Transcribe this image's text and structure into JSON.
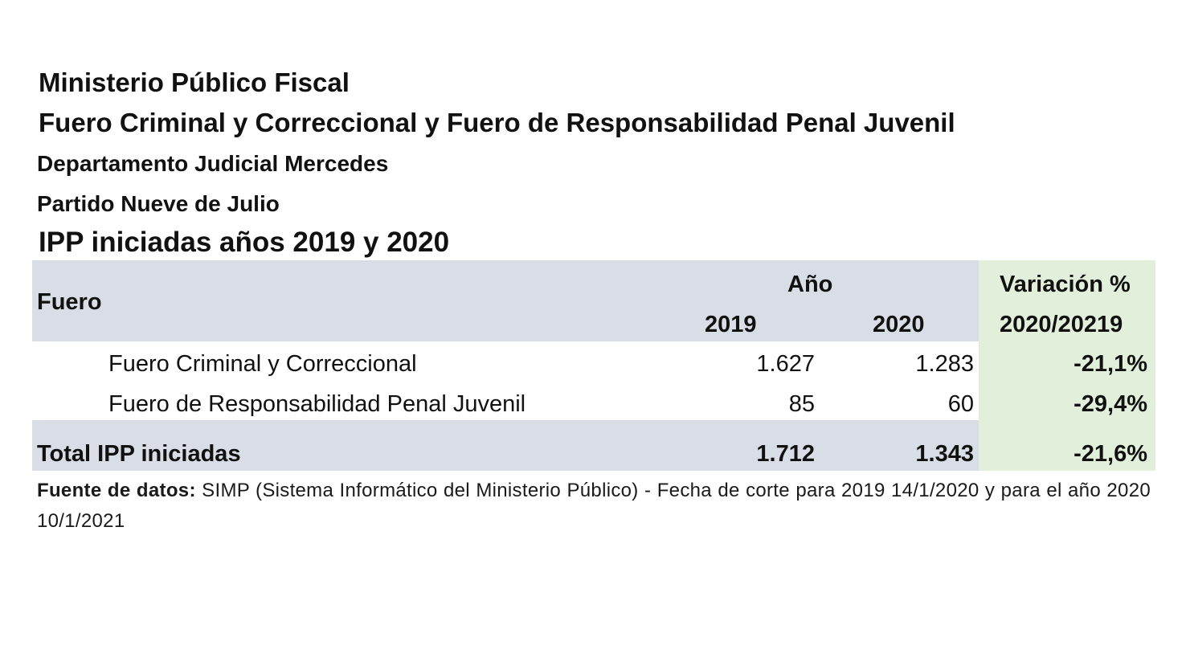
{
  "header": {
    "line1": "Ministerio Público Fiscal",
    "line2": "Fuero Criminal y Correccional y Fuero de Responsabilidad Penal Juvenil",
    "line3": "Departamento Judicial Mercedes",
    "line4": "Partido Nueve de Julio",
    "line5": "IPP iniciadas años 2019 y 2020"
  },
  "table": {
    "col_fuero": "Fuero",
    "col_anio": "Año",
    "col_2019": "2019",
    "col_2020": "2020",
    "col_var_1": "Variación %",
    "col_var_2": "2020/20219",
    "rows": [
      {
        "label": "Fuero Criminal y Correccional",
        "v2019": "1.627",
        "v2020": "1.283",
        "var": "-21,1%"
      },
      {
        "label": "Fuero de Responsabilidad Penal Juvenil",
        "v2019": "85",
        "v2020": "60",
        "var": "-29,4%"
      }
    ],
    "total": {
      "label": "Total IPP iniciadas",
      "v2019": "1.712",
      "v2020": "1.343",
      "var": "-21,6%"
    }
  },
  "source": {
    "label": "Fuente de datos:",
    "text": " SIMP (Sistema Informático del Ministerio Público) - Fecha de corte para 2019 14/1/2020 y para el año 2020 10/1/2021"
  },
  "colors": {
    "header_band": "#d8dde6",
    "variation_column": "#e2efda"
  }
}
